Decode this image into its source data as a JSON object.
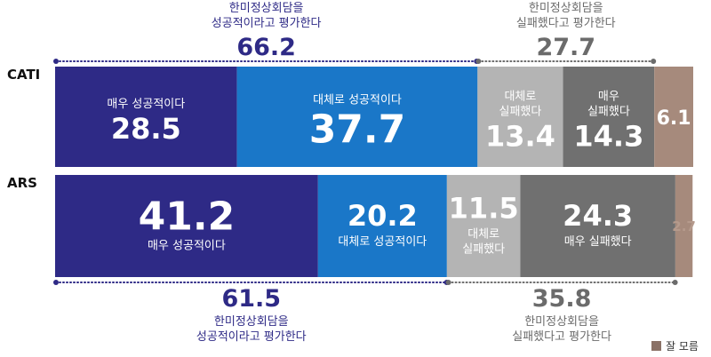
{
  "chart_data": {
    "type": "bar",
    "orientation": "horizontal",
    "stacked": true,
    "xlim": [
      0,
      100
    ],
    "rows": [
      {
        "name": "CATI",
        "segments": [
          {
            "lines": [
              "매우 성공적이다"
            ],
            "value": 28.5,
            "label_pos": "above",
            "color": "#2e2a86",
            "text": "#ffffff"
          },
          {
            "lines": [
              "대체로 성공적이다"
            ],
            "value": 37.7,
            "label_pos": "above",
            "color": "#1a77c8",
            "text": "#ffffff"
          },
          {
            "lines": [
              "대체로",
              "실패했다"
            ],
            "value": 13.4,
            "label_pos": "above",
            "color": "#b4b4b4",
            "text": "#ffffff"
          },
          {
            "lines": [
              "매우",
              "실패했다"
            ],
            "value": 14.3,
            "label_pos": "above",
            "color": "#707070",
            "text": "#ffffff"
          },
          {
            "lines": [],
            "value": 6.1,
            "label_pos": "above",
            "color": "#a68a7c",
            "text": "#ffffff"
          }
        ],
        "summaries": [
          {
            "lines": [
              "한미정상회담을",
              "성공적이라고 평가한다"
            ],
            "value": 66.2,
            "position": "top",
            "start": 0,
            "end": 66.2,
            "color": "#2e2a86"
          },
          {
            "lines": [
              "한미정상회담을",
              "실패했다고 평가한다"
            ],
            "value": 27.7,
            "position": "top",
            "start": 66.2,
            "end": 93.9,
            "color": "#6b6b6b"
          }
        ]
      },
      {
        "name": "ARS",
        "segments": [
          {
            "lines": [
              "매우 성공적이다"
            ],
            "value": 41.2,
            "label_pos": "below",
            "color": "#2e2a86",
            "text": "#ffffff"
          },
          {
            "lines": [
              "대체로 성공적이다"
            ],
            "value": 20.2,
            "label_pos": "below",
            "color": "#1a77c8",
            "text": "#ffffff"
          },
          {
            "lines": [
              "대체로",
              "실패했다"
            ],
            "value": 11.5,
            "label_pos": "below",
            "color": "#b4b4b4",
            "text": "#ffffff"
          },
          {
            "lines": [
              "매우 실패했다"
            ],
            "value": 24.3,
            "label_pos": "below",
            "color": "#707070",
            "text": "#ffffff"
          },
          {
            "lines": [],
            "value": 2.7,
            "label_pos": "below",
            "color": "#a68a7c",
            "text": "#b59a8c"
          }
        ],
        "summaries": [
          {
            "lines": [
              "한미정상회담을",
              "성공적이라고 평가한다"
            ],
            "value": 61.5,
            "position": "bottom",
            "start": 0,
            "end": 61.5,
            "color": "#2e2a86"
          },
          {
            "lines": [
              "한미정상회담을",
              "실패했다고 평가한다"
            ],
            "value": 35.8,
            "position": "bottom",
            "start": 61.5,
            "end": 97.3,
            "color": "#6b6b6b"
          }
        ]
      }
    ],
    "legend": {
      "label": "잘 모름",
      "color": "#8a7166",
      "placement": "bottom-right"
    }
  }
}
